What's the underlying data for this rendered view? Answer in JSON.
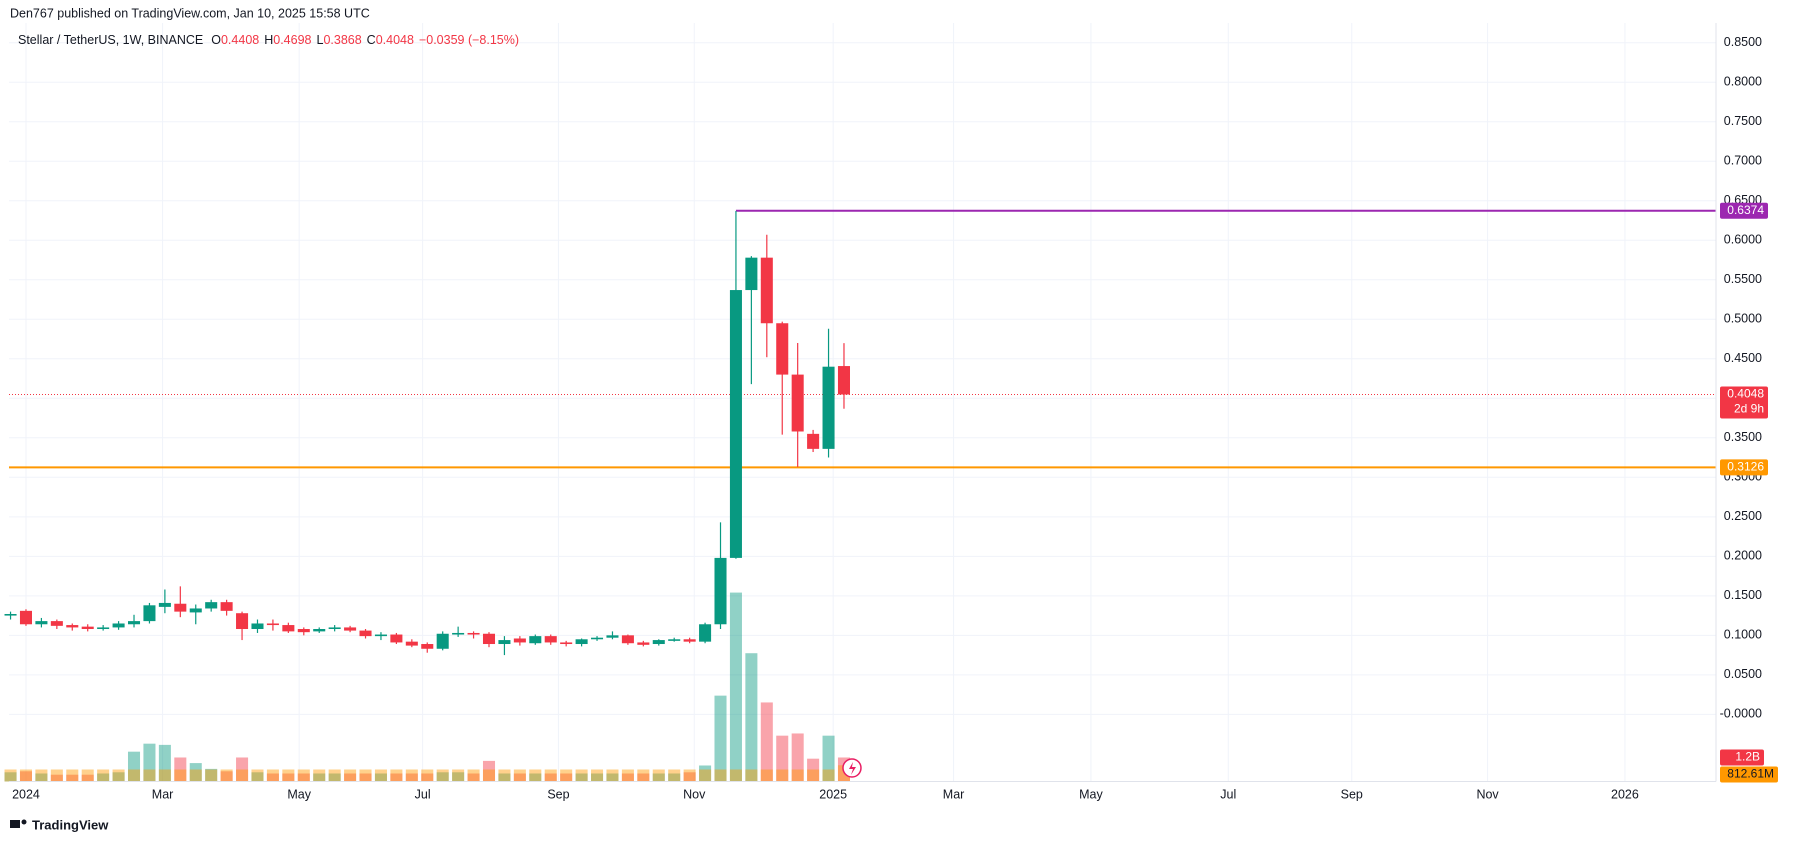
{
  "chart_data": {
    "type": "candlestick",
    "attribution": "Den767 published on TradingView.com, Jan 10, 2025 15:58 UTC",
    "title": "Stellar / TetherUS, 1W, BINANCE",
    "ohlc_letters": [
      "O",
      "H",
      "L",
      "C"
    ],
    "change_label": "−0.0359 (−8.15%)",
    "countdown": "2d 9h",
    "brand": "TradingView",
    "up_color": "#089981",
    "down_color": "#f23645",
    "open": [
      0.125,
      0.131,
      0.114,
      0.118,
      0.113,
      0.111,
      0.108,
      0.11,
      0.114,
      0.118,
      0.136,
      0.14,
      0.129,
      0.134,
      0.142,
      0.128,
      0.108,
      0.115,
      0.113,
      0.108,
      0.105,
      0.108,
      0.11,
      0.106,
      0.099,
      0.101,
      0.092,
      0.089,
      0.083,
      0.101,
      0.103,
      0.102,
      0.089,
      0.096,
      0.09,
      0.099,
      0.091,
      0.089,
      0.095,
      0.097,
      0.1,
      0.091,
      0.089,
      0.093,
      0.095,
      0.092,
      0.114,
      0.198,
      0.537,
      0.578,
      0.495,
      0.43,
      0.355,
      0.336,
      0.4408
    ],
    "high": [
      0.13,
      0.133,
      0.122,
      0.12,
      0.115,
      0.114,
      0.113,
      0.118,
      0.126,
      0.141,
      0.158,
      0.162,
      0.139,
      0.145,
      0.145,
      0.13,
      0.12,
      0.12,
      0.116,
      0.11,
      0.11,
      0.113,
      0.112,
      0.108,
      0.104,
      0.103,
      0.095,
      0.091,
      0.105,
      0.111,
      0.105,
      0.104,
      0.099,
      0.099,
      0.101,
      0.101,
      0.093,
      0.096,
      0.099,
      0.105,
      0.101,
      0.093,
      0.095,
      0.097,
      0.097,
      0.116,
      0.243,
      0.637,
      0.58,
      0.607,
      0.497,
      0.47,
      0.36,
      0.488,
      0.4698
    ],
    "low": [
      0.12,
      0.112,
      0.11,
      0.108,
      0.106,
      0.105,
      0.106,
      0.107,
      0.11,
      0.115,
      0.128,
      0.123,
      0.114,
      0.13,
      0.125,
      0.094,
      0.103,
      0.106,
      0.103,
      0.1,
      0.103,
      0.105,
      0.104,
      0.096,
      0.094,
      0.089,
      0.085,
      0.078,
      0.081,
      0.098,
      0.096,
      0.085,
      0.075,
      0.087,
      0.088,
      0.088,
      0.086,
      0.086,
      0.093,
      0.095,
      0.088,
      0.086,
      0.087,
      0.092,
      0.09,
      0.09,
      0.108,
      0.197,
      0.418,
      0.452,
      0.354,
      0.313,
      0.332,
      0.325,
      0.3868
    ],
    "close": [
      0.127,
      0.114,
      0.118,
      0.112,
      0.11,
      0.108,
      0.11,
      0.115,
      0.118,
      0.138,
      0.141,
      0.13,
      0.134,
      0.142,
      0.131,
      0.108,
      0.115,
      0.113,
      0.105,
      0.104,
      0.108,
      0.11,
      0.106,
      0.099,
      0.101,
      0.091,
      0.087,
      0.083,
      0.102,
      0.103,
      0.101,
      0.089,
      0.094,
      0.091,
      0.099,
      0.091,
      0.089,
      0.095,
      0.097,
      0.1,
      0.09,
      0.088,
      0.094,
      0.095,
      0.092,
      0.114,
      0.198,
      0.537,
      0.578,
      0.495,
      0.43,
      0.358,
      0.336,
      0.44,
      0.4048
    ],
    "volume": [
      460000000.0,
      510000000.0,
      400000000.0,
      340000000.0,
      340000000.0,
      340000000.0,
      400000000.0,
      460000000.0,
      1490000000.0,
      1890000000.0,
      1830000000.0,
      1200000000.0,
      920000000.0,
      630000000.0,
      510000000.0,
      1200000000.0,
      460000000.0,
      400000000.0,
      400000000.0,
      400000000.0,
      400000000.0,
      400000000.0,
      400000000.0,
      400000000.0,
      400000000.0,
      400000000.0,
      400000000.0,
      400000000.0,
      460000000.0,
      460000000.0,
      400000000.0,
      1030000000.0,
      400000000.0,
      400000000.0,
      400000000.0,
      400000000.0,
      400000000.0,
      400000000.0,
      400000000.0,
      400000000.0,
      400000000.0,
      400000000.0,
      400000000.0,
      400000000.0,
      460000000.0,
      800000000.0,
      4290000000.0,
      9440000000.0,
      6410000000.0,
      3950000000.0,
      2290000000.0,
      2400000000.0,
      1140000000.0,
      2290000000.0,
      1200000000.0
    ],
    "volume_ma": [
      600000000.0,
      600000000.0,
      600000000.0,
      600000000.0,
      600000000.0,
      600000000.0,
      600000000.0,
      600000000.0,
      600000000.0,
      600000000.0,
      600000000.0,
      600000000.0,
      600000000.0,
      600000000.0,
      600000000.0,
      600000000.0,
      600000000.0,
      600000000.0,
      600000000.0,
      600000000.0,
      600000000.0,
      600000000.0,
      600000000.0,
      600000000.0,
      600000000.0,
      600000000.0,
      600000000.0,
      600000000.0,
      600000000.0,
      600000000.0,
      600000000.0,
      600000000.0,
      600000000.0,
      600000000.0,
      600000000.0,
      600000000.0,
      600000000.0,
      600000000.0,
      600000000.0,
      600000000.0,
      600000000.0,
      600000000.0,
      600000000.0,
      600000000.0,
      600000000.0,
      600000000.0,
      600000000.0,
      600000000.0,
      600000000.0,
      600000000.0,
      600000000.0,
      600000000.0,
      600000000.0,
      600000000.0,
      812610000
    ],
    "volume_ma_color": "#ff9800",
    "volume_last_label": "1.2B",
    "volume_ma_last_label": "812.61M",
    "volume_ylim": [
      0,
      37900000000.0
    ],
    "levels": [
      {
        "value": 0.6374,
        "color": "#9c27b0"
      },
      {
        "value": 0.3126,
        "color": "#ff9800"
      }
    ],
    "ylim": [
      -0.085,
      0.875
    ],
    "yticks": [
      {
        "value": 0.85,
        "label": "0.8500"
      },
      {
        "value": 0.8,
        "label": "0.8000"
      },
      {
        "value": 0.75,
        "label": "0.7500"
      },
      {
        "value": 0.7,
        "label": "0.7000"
      },
      {
        "value": 0.65,
        "label": "0.6500"
      },
      {
        "value": 0.6,
        "label": "0.6000"
      },
      {
        "value": 0.55,
        "label": "0.5500"
      },
      {
        "value": 0.5,
        "label": "0.5000"
      },
      {
        "value": 0.45,
        "label": "0.4500"
      },
      {
        "value": 0.4,
        "label": "0.4000"
      },
      {
        "value": 0.35,
        "label": "0.3500"
      },
      {
        "value": 0.3,
        "label": "0.3000"
      },
      {
        "value": 0.25,
        "label": "0.2500"
      },
      {
        "value": 0.2,
        "label": "0.2000"
      },
      {
        "value": 0.15,
        "label": "0.1500"
      },
      {
        "value": 0.1,
        "label": "0.1000"
      },
      {
        "value": 0.05,
        "label": "0.0500"
      },
      {
        "value": 0,
        "label": "-0.0000"
      }
    ],
    "xlim": [
      -0.1,
      110.5
    ],
    "xticks": [
      {
        "value": 1,
        "label": "2024"
      },
      {
        "value": 9.85,
        "label": "Mar"
      },
      {
        "value": 18.7,
        "label": "May"
      },
      {
        "value": 26.7,
        "label": "Jul"
      },
      {
        "value": 35.5,
        "label": "Sep"
      },
      {
        "value": 44.3,
        "label": "Nov"
      },
      {
        "value": 53.3,
        "label": "2025"
      },
      {
        "value": 61.1,
        "label": "Mar"
      },
      {
        "value": 70,
        "label": "May"
      },
      {
        "value": 78.9,
        "label": "Jul"
      },
      {
        "value": 86.9,
        "label": "Sep"
      },
      {
        "value": 95.7,
        "label": "Nov"
      },
      {
        "value": 104.6,
        "label": "2026"
      }
    ],
    "grid": true
  }
}
